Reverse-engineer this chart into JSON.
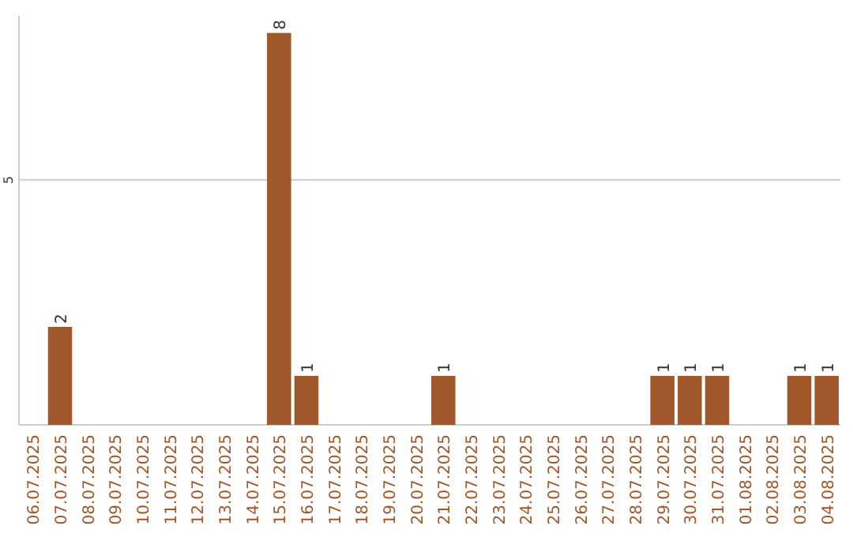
{
  "chart_data": {
    "type": "bar",
    "categories": [
      "06.07.2025",
      "07.07.2025",
      "08.07.2025",
      "09.07.2025",
      "10.07.2025",
      "11.07.2025",
      "12.07.2025",
      "13.07.2025",
      "14.07.2025",
      "15.07.2025",
      "16.07.2025",
      "17.07.2025",
      "18.07.2025",
      "19.07.2025",
      "20.07.2025",
      "21.07.2025",
      "22.07.2025",
      "23.07.2025",
      "24.07.2025",
      "25.07.2025",
      "26.07.2025",
      "27.07.2025",
      "28.07.2025",
      "29.07.2025",
      "30.07.2025",
      "31.07.2025",
      "01.08.2025",
      "02.08.2025",
      "03.08.2025",
      "04.08.2025"
    ],
    "values": [
      0,
      2,
      0,
      0,
      0,
      0,
      0,
      0,
      0,
      8,
      1,
      0,
      0,
      0,
      0,
      1,
      0,
      0,
      0,
      0,
      0,
      0,
      0,
      1,
      1,
      1,
      0,
      0,
      1,
      1
    ],
    "value_labels": [
      null,
      "2",
      null,
      null,
      null,
      null,
      null,
      null,
      null,
      "8",
      "1",
      null,
      null,
      null,
      null,
      "1",
      null,
      null,
      null,
      null,
      null,
      null,
      null,
      "1",
      "1",
      "1",
      null,
      null,
      "1",
      "1"
    ],
    "color": "#a0572a",
    "ylim": [
      0,
      8.35
    ],
    "yticks": [
      5
    ],
    "grid": "y"
  }
}
